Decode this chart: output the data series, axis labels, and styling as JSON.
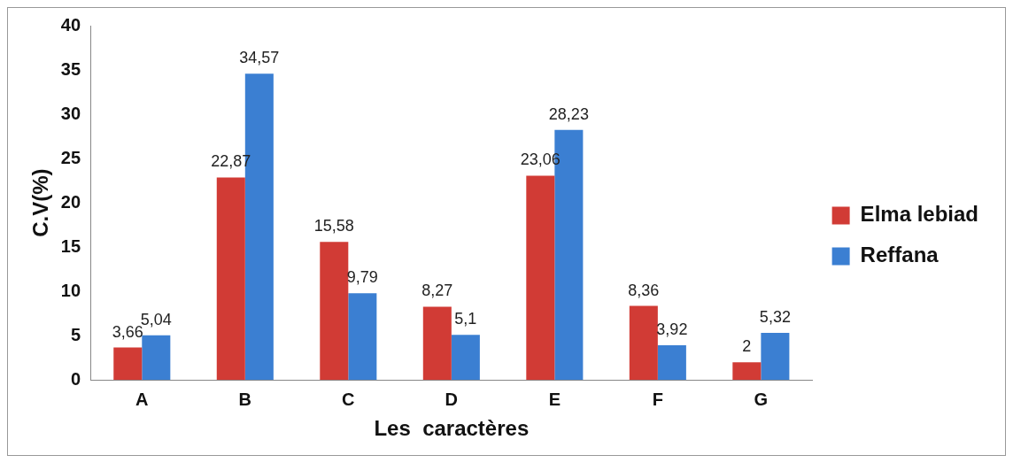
{
  "chart_data": {
    "type": "bar",
    "xlabel": "Les  caractères",
    "ylabel": "C.V(%)",
    "categories": [
      "A",
      "B",
      "C",
      "D",
      "E",
      "F",
      "G"
    ],
    "series": [
      {
        "name": "Elma lebiad",
        "color": "#d13b35",
        "values": [
          3.66,
          22.87,
          15.58,
          8.27,
          23.06,
          8.36,
          2
        ],
        "value_labels": [
          "3,66",
          "22,87",
          "15,58",
          "8,27",
          "23,06",
          "8,36",
          "2"
        ]
      },
      {
        "name": "Reffana",
        "color": "#3b7fd2",
        "values": [
          5.04,
          34.57,
          9.79,
          5.1,
          28.23,
          3.92,
          5.32
        ],
        "value_labels": [
          "5,04",
          "34,57",
          "9,79",
          "5,1",
          "28,23",
          "3,92",
          "5,32"
        ]
      }
    ],
    "ylim": [
      0,
      40
    ],
    "yticks": [
      0,
      5,
      10,
      15,
      20,
      25,
      30,
      35,
      40
    ],
    "grid": false,
    "legend": "right"
  }
}
